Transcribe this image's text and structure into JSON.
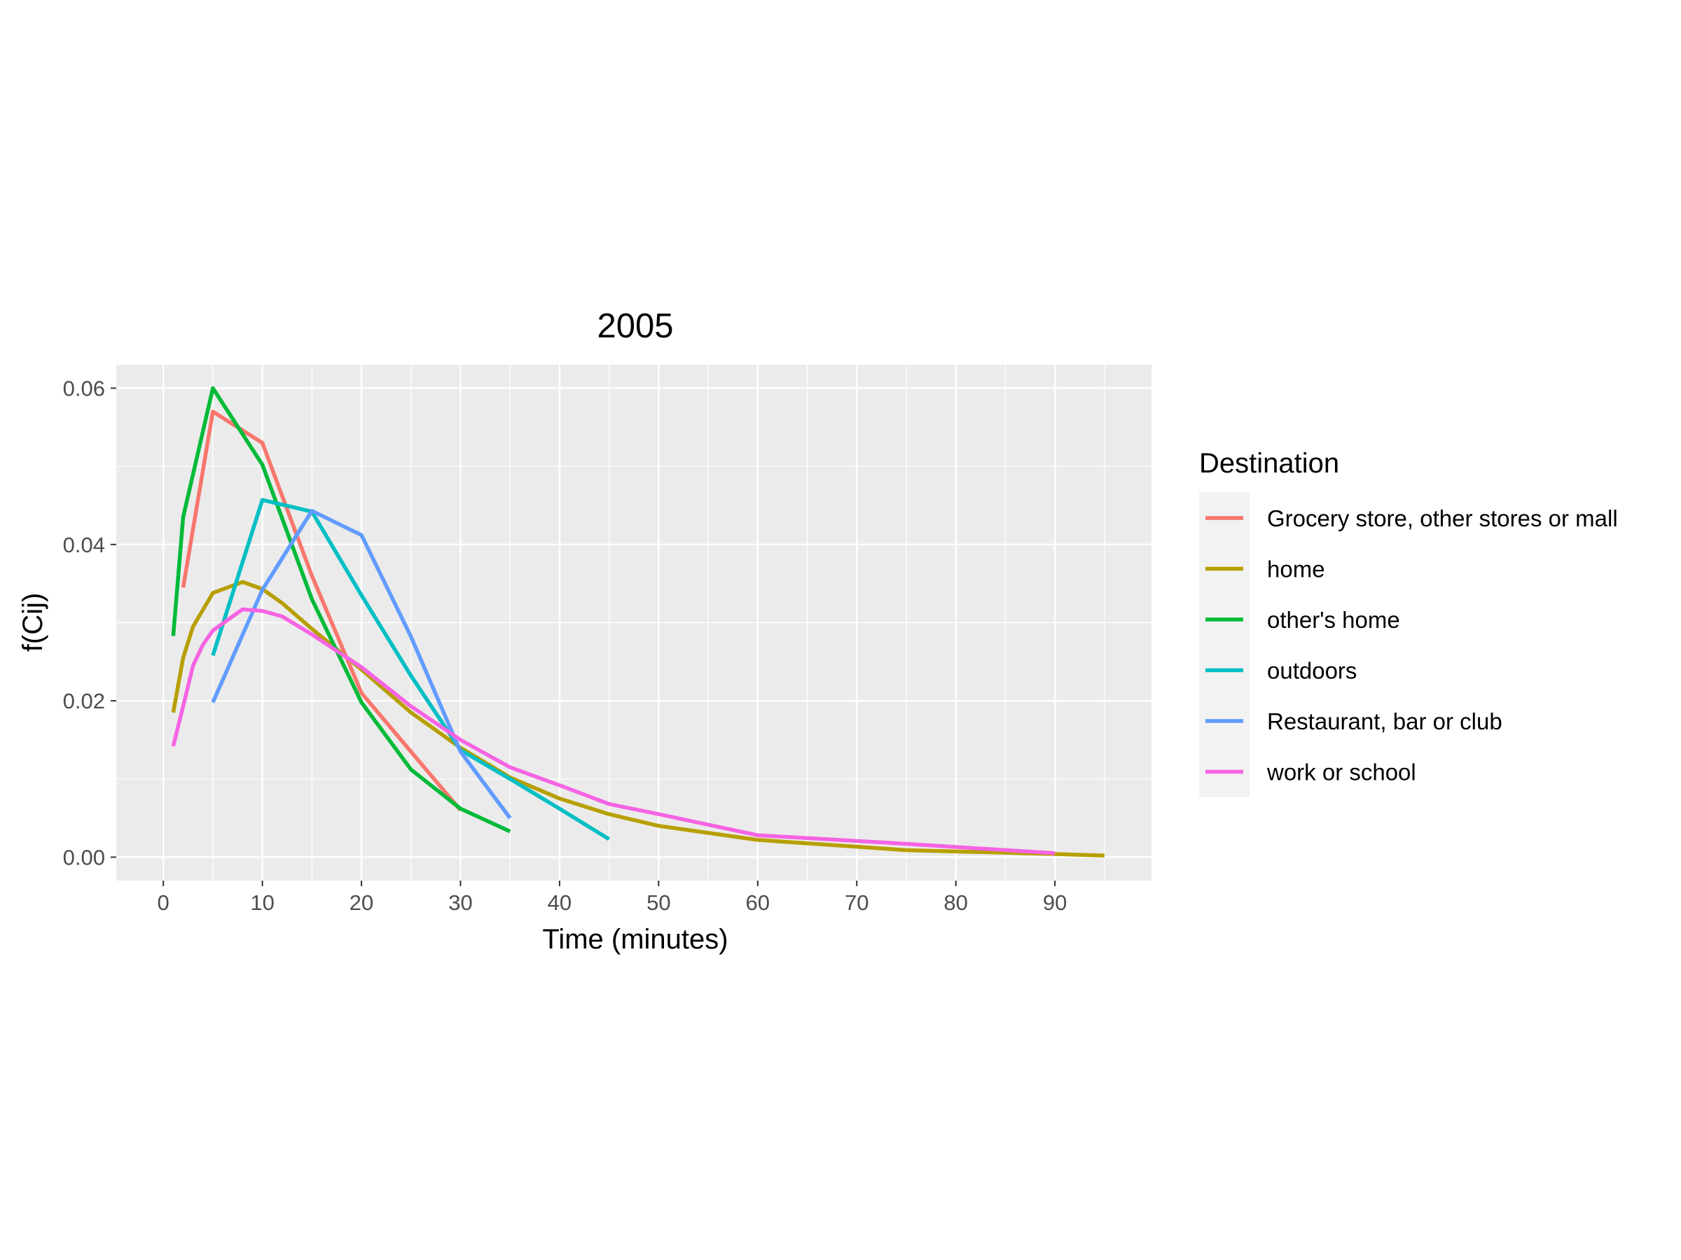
{
  "chart_data": {
    "type": "line",
    "title": "2005",
    "xlabel": "Time (minutes)",
    "ylabel": "f(Cij)",
    "xlim": [
      0,
      95
    ],
    "ylim": [
      0,
      0.06
    ],
    "x_ticks": [
      0,
      10,
      20,
      30,
      40,
      50,
      60,
      70,
      80,
      90
    ],
    "x_tick_labels": [
      "0",
      "10",
      "20",
      "30",
      "40",
      "50",
      "60",
      "70",
      "80",
      "90"
    ],
    "y_ticks": [
      0,
      0.02,
      0.04,
      0.06
    ],
    "y_tick_labels": [
      "0.00",
      "0.02",
      "0.04",
      "0.06"
    ],
    "grid": true,
    "legend": {
      "title": "Destination",
      "position": "right"
    },
    "series": [
      {
        "name": "Grocery store, other stores or mall",
        "color": "#F8766D",
        "x": [
          2,
          5,
          10,
          15,
          20,
          25,
          30
        ],
        "y": [
          0.0345,
          0.057,
          0.053,
          0.036,
          0.021,
          0.0135,
          0.006
        ]
      },
      {
        "name": "home",
        "color": "#B79F00",
        "x": [
          1,
          2,
          3,
          5,
          8,
          10,
          12,
          15,
          20,
          25,
          30,
          35,
          40,
          45,
          50,
          60,
          75,
          90,
          95
        ],
        "y": [
          0.0185,
          0.0255,
          0.0295,
          0.0338,
          0.0352,
          0.0343,
          0.0325,
          0.0292,
          0.024,
          0.0185,
          0.014,
          0.0102,
          0.0075,
          0.0055,
          0.004,
          0.0022,
          0.0009,
          0.0004,
          0.0002
        ]
      },
      {
        "name": "other's home",
        "color": "#00BA38",
        "x": [
          1,
          2,
          5,
          10,
          15,
          20,
          25,
          30,
          35
        ],
        "y": [
          0.0283,
          0.0435,
          0.06,
          0.0502,
          0.033,
          0.0198,
          0.0112,
          0.0062,
          0.0033
        ]
      },
      {
        "name": "outdoors",
        "color": "#00BFC4",
        "x": [
          5,
          10,
          15,
          20,
          25,
          30,
          35,
          40,
          45
        ],
        "y": [
          0.0258,
          0.0457,
          0.0442,
          0.0335,
          0.0232,
          0.0137,
          0.01,
          0.0062,
          0.0023
        ]
      },
      {
        "name": "Restaurant, bar or club",
        "color": "#619CFF",
        "x": [
          5,
          10,
          15,
          20,
          25,
          30,
          35
        ],
        "y": [
          0.0198,
          0.0342,
          0.0443,
          0.0412,
          0.0282,
          0.0135,
          0.005
        ]
      },
      {
        "name": "work or school",
        "color": "#F564E3",
        "x": [
          1,
          2,
          3,
          4,
          5,
          8,
          10,
          12,
          15,
          20,
          25,
          30,
          35,
          40,
          45,
          50,
          60,
          75,
          90
        ],
        "y": [
          0.0142,
          0.0193,
          0.0245,
          0.0272,
          0.029,
          0.0317,
          0.0315,
          0.0308,
          0.0285,
          0.0243,
          0.0193,
          0.015,
          0.0115,
          0.0092,
          0.0068,
          0.0055,
          0.0028,
          0.0017,
          0.0005
        ]
      }
    ]
  }
}
